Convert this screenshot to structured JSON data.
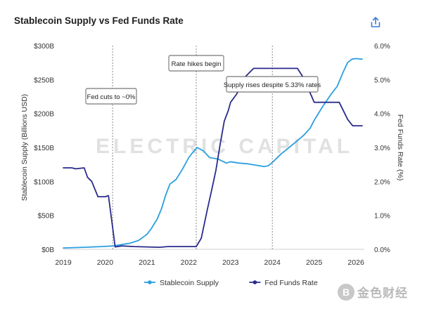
{
  "header": {
    "title": "Stablecoin Supply vs Fed Funds Rate",
    "share_icon": "share-icon"
  },
  "watermark": {
    "text": "ELECTRIC CAPITAL"
  },
  "brand": {
    "logo_text": "B",
    "name": "金色财经"
  },
  "chart_data": {
    "type": "line",
    "x_ticks": [
      "2019",
      "2020",
      "2021",
      "2022",
      "2023",
      "2024",
      "2025",
      "2026"
    ],
    "xlim": [
      2019,
      2026.2
    ],
    "ylabel_left": "Stablecoin Supply (Billions USD)",
    "ylabel_right": "Fed Funds Rate (%)",
    "ylim_left": [
      0,
      300
    ],
    "ylim_right": [
      0,
      6
    ],
    "y_ticks_left": [
      "$0B",
      "$50B",
      "$100B",
      "$150B",
      "$200B",
      "$250B",
      "$300B"
    ],
    "y_ticks_right": [
      "0.0%",
      "1.0%",
      "2.0%",
      "3.0%",
      "4.0%",
      "5.0%",
      "6.0%"
    ],
    "grid": false,
    "legend_position": "bottom",
    "series": [
      {
        "name": "Stablecoin Supply",
        "axis": "left",
        "color": "#2b9fe0",
        "points": [
          [
            2019.0,
            2
          ],
          [
            2019.5,
            3
          ],
          [
            2019.9,
            4
          ],
          [
            2020.2,
            5
          ],
          [
            2020.4,
            7
          ],
          [
            2020.6,
            9
          ],
          [
            2020.8,
            13
          ],
          [
            2021.0,
            22
          ],
          [
            2021.1,
            30
          ],
          [
            2021.25,
            45
          ],
          [
            2021.35,
            60
          ],
          [
            2021.45,
            80
          ],
          [
            2021.55,
            96
          ],
          [
            2021.7,
            103
          ],
          [
            2021.85,
            118
          ],
          [
            2022.0,
            135
          ],
          [
            2022.1,
            143
          ],
          [
            2022.2,
            150
          ],
          [
            2022.35,
            145
          ],
          [
            2022.5,
            135
          ],
          [
            2022.7,
            133
          ],
          [
            2022.9,
            127
          ],
          [
            2023.0,
            129
          ],
          [
            2023.2,
            127
          ],
          [
            2023.4,
            126
          ],
          [
            2023.6,
            124
          ],
          [
            2023.8,
            122
          ],
          [
            2023.9,
            123
          ],
          [
            2024.0,
            128
          ],
          [
            2024.2,
            140
          ],
          [
            2024.4,
            150
          ],
          [
            2024.6,
            160
          ],
          [
            2024.75,
            168
          ],
          [
            2024.9,
            178
          ],
          [
            2025.0,
            190
          ],
          [
            2025.2,
            210
          ],
          [
            2025.4,
            228
          ],
          [
            2025.55,
            240
          ],
          [
            2025.7,
            262
          ],
          [
            2025.8,
            275
          ],
          [
            2025.9,
            280
          ],
          [
            2026.0,
            281
          ],
          [
            2026.15,
            280
          ]
        ]
      },
      {
        "name": "Fed Funds Rate",
        "axis": "right",
        "color": "#2a2a8c",
        "points": [
          [
            2019.0,
            2.4
          ],
          [
            2019.2,
            2.4
          ],
          [
            2019.3,
            2.37
          ],
          [
            2019.5,
            2.4
          ],
          [
            2019.58,
            2.12
          ],
          [
            2019.68,
            2.0
          ],
          [
            2019.83,
            1.55
          ],
          [
            2020.0,
            1.55
          ],
          [
            2020.08,
            1.58
          ],
          [
            2020.18,
            0.65
          ],
          [
            2020.24,
            0.07
          ],
          [
            2020.4,
            0.1
          ],
          [
            2020.7,
            0.08
          ],
          [
            2021.0,
            0.07
          ],
          [
            2021.3,
            0.06
          ],
          [
            2021.5,
            0.08
          ],
          [
            2021.8,
            0.08
          ],
          [
            2022.0,
            0.08
          ],
          [
            2022.18,
            0.08
          ],
          [
            2022.3,
            0.33
          ],
          [
            2022.45,
            1.2
          ],
          [
            2022.55,
            1.75
          ],
          [
            2022.65,
            2.33
          ],
          [
            2022.75,
            3.08
          ],
          [
            2022.85,
            3.78
          ],
          [
            2022.95,
            4.1
          ],
          [
            2023.0,
            4.33
          ],
          [
            2023.15,
            4.58
          ],
          [
            2023.35,
            5.08
          ],
          [
            2023.55,
            5.33
          ],
          [
            2023.6,
            5.33
          ],
          [
            2024.0,
            5.33
          ],
          [
            2024.3,
            5.33
          ],
          [
            2024.6,
            5.33
          ],
          [
            2024.72,
            5.1
          ],
          [
            2024.82,
            4.83
          ],
          [
            2024.95,
            4.48
          ],
          [
            2025.0,
            4.33
          ],
          [
            2025.3,
            4.33
          ],
          [
            2025.6,
            4.33
          ],
          [
            2025.7,
            4.08
          ],
          [
            2025.8,
            3.83
          ],
          [
            2025.92,
            3.64
          ],
          [
            2026.15,
            3.64
          ]
        ]
      }
    ],
    "annotations": [
      {
        "x": 2020.18,
        "text": "Fed cuts to ~0%"
      },
      {
        "x": 2022.18,
        "text": "Rate hikes begin"
      },
      {
        "x": 2024.0,
        "text": "Supply rises despite 5.33% rates"
      }
    ]
  }
}
